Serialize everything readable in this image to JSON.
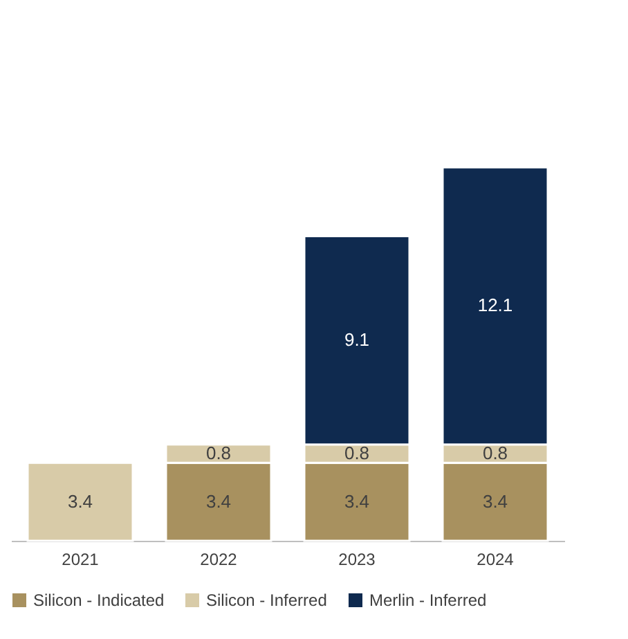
{
  "chart_data": {
    "type": "bar",
    "stacked": true,
    "data_labels": true,
    "legend": "bottom",
    "grid": false,
    "categories": [
      "2021",
      "2022",
      "2023",
      "2024"
    ],
    "series": [
      {
        "name": "Silicon - Indicated",
        "color": "#a8915f",
        "values": [
          null,
          3.4,
          3.4,
          3.4
        ]
      },
      {
        "name": "Silicon - Inferred",
        "color": "#d8cba8",
        "values": [
          3.4,
          0.8,
          0.8,
          0.8
        ]
      },
      {
        "name": "Merlin - Inferred",
        "color": "#0f2a4f",
        "values": [
          null,
          null,
          9.1,
          12.1
        ]
      }
    ]
  }
}
